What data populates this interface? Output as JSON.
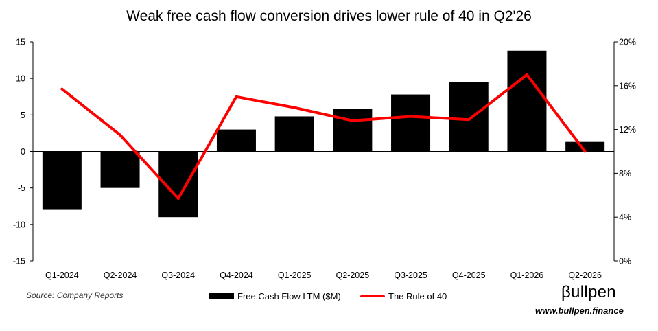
{
  "chart_data": {
    "type": "bar+line",
    "title": "Weak free cash flow conversion drives lower rule of 40 in Q2'26",
    "categories": [
      "Q1-2024",
      "Q2-2024",
      "Q3-2024",
      "Q4-2024",
      "Q1-2025",
      "Q2-2025",
      "Q3-2025",
      "Q4-2025",
      "Q1-2026",
      "Q2-2026"
    ],
    "series": [
      {
        "name": "Free Cash Flow LTM ($M)",
        "type": "bar",
        "axis": "left",
        "color": "#000000",
        "values": [
          -8.0,
          -5.0,
          -9.0,
          3.0,
          4.8,
          5.8,
          7.8,
          9.5,
          13.8,
          1.3
        ]
      },
      {
        "name": "The Rule of 40",
        "type": "line",
        "axis": "right",
        "color": "#ff0000",
        "values": [
          15.7,
          11.5,
          5.7,
          15.0,
          14.0,
          12.8,
          13.2,
          12.9,
          17.0,
          10.0
        ]
      }
    ],
    "y_left": {
      "min": -15,
      "max": 15,
      "ticks": [
        "15",
        "10",
        "5",
        "0",
        "-5",
        "-10",
        "-15"
      ]
    },
    "y_right": {
      "min": 0,
      "max": 20,
      "ticks": [
        "20%",
        "16%",
        "12%",
        "8%",
        "4%",
        "0%"
      ]
    },
    "grid": false,
    "legend_position": "bottom"
  },
  "footer": {
    "source": "Source: Company Reports",
    "brand": "βullpen",
    "website": "www.bullpen.finance"
  }
}
